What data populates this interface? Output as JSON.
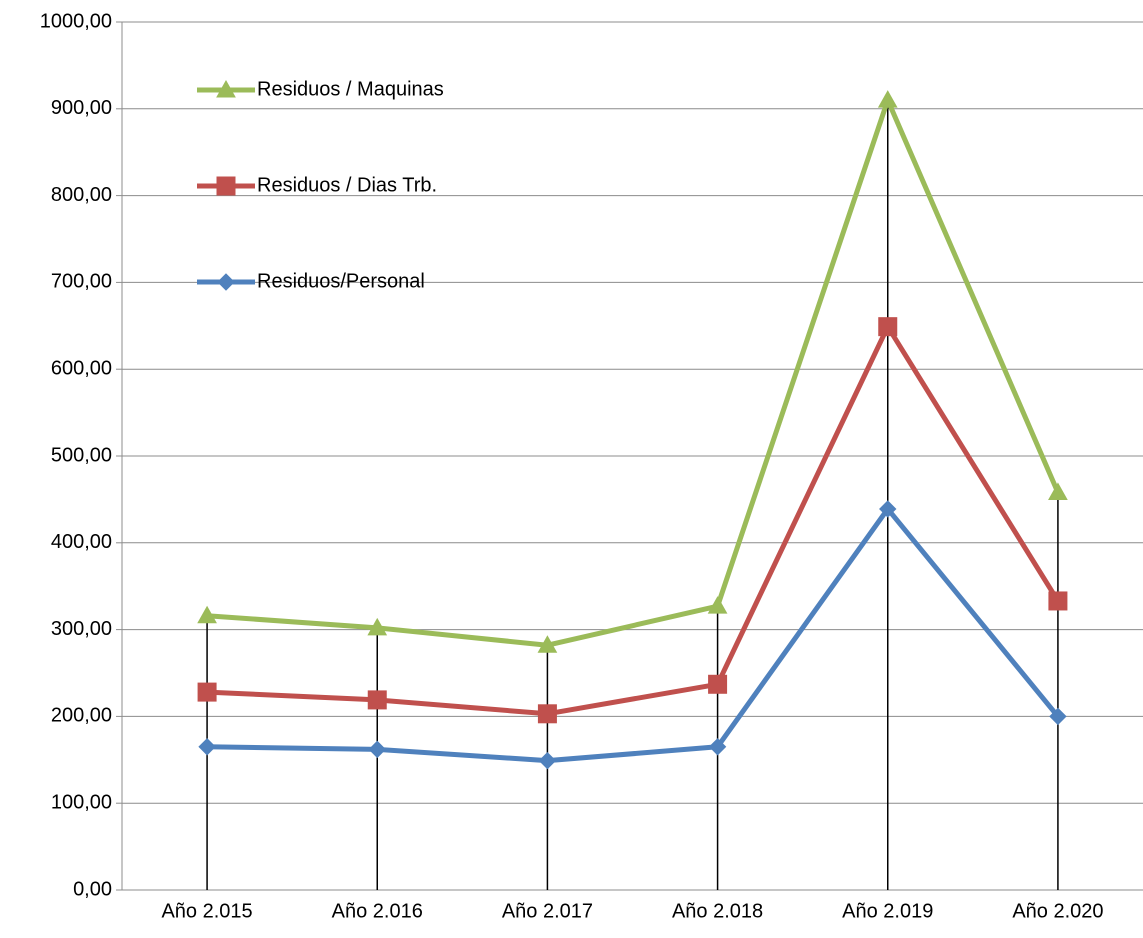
{
  "chart_data": {
    "type": "line",
    "categories": [
      "Año 2.015",
      "Año 2.016",
      "Año 2.017",
      "Año 2.018",
      "Año 2.019",
      "Año 2.020"
    ],
    "series": [
      {
        "name": "Residuos / Maquinas",
        "color": "#9bbb59",
        "marker": "triangle",
        "values": [
          316,
          302,
          282,
          327,
          910,
          458
        ]
      },
      {
        "name": "Residuos / Dias Trb.",
        "color": "#c0504d",
        "marker": "square",
        "values": [
          228,
          219,
          203,
          237,
          649,
          333
        ]
      },
      {
        "name": "Residuos/Personal",
        "color": "#4f81bd",
        "marker": "diamond",
        "values": [
          165,
          162,
          149,
          165,
          439,
          200
        ]
      }
    ],
    "ylim": [
      0,
      1000
    ],
    "yticks": [
      {
        "value": 0,
        "label": "0,00"
      },
      {
        "value": 100,
        "label": "100,00"
      },
      {
        "value": 200,
        "label": "200,00"
      },
      {
        "value": 300,
        "label": "300,00"
      },
      {
        "value": 400,
        "label": "400,00"
      },
      {
        "value": 500,
        "label": "500,00"
      },
      {
        "value": 600,
        "label": "600,00"
      },
      {
        "value": 700,
        "label": "700,00"
      },
      {
        "value": 800,
        "label": "800,00"
      },
      {
        "value": 900,
        "label": "900,00"
      },
      {
        "value": 1000,
        "label": "1000,00"
      }
    ],
    "grid": true,
    "drop_lines": true,
    "legend": "upper left"
  }
}
